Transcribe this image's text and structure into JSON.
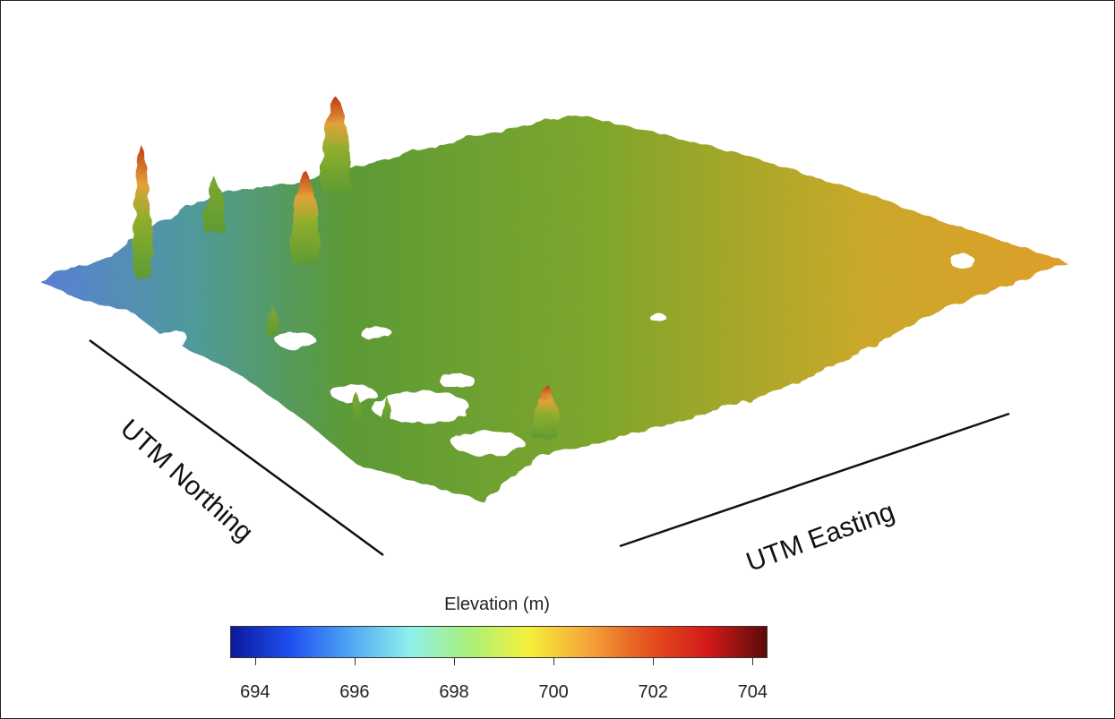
{
  "chart_data": {
    "type": "heatmap",
    "description_kind": "3d-point-cloud-elevation",
    "xlabel": "UTM Easting",
    "ylabel": "UTM Northing",
    "colorbar": {
      "title": "Elevation (m)",
      "range": [
        693.5,
        704.3
      ],
      "ticks": [
        694,
        696,
        698,
        700,
        702,
        704
      ],
      "tick_labels": [
        "694",
        "696",
        "698",
        "700",
        "702",
        "704"
      ],
      "colors": [
        "#0b1a9c",
        "#1f4ff0",
        "#4fa6f5",
        "#8ff0ec",
        "#a8f07a",
        "#f5f03a",
        "#f5a53a",
        "#e5521f",
        "#d41a1a",
        "#5c0a0a"
      ]
    },
    "ground_elevation_range": [
      695,
      701.5
    ],
    "tree_peak_elevations": [
      703.5,
      702.5,
      703.8,
      701.5,
      700.5
    ]
  }
}
